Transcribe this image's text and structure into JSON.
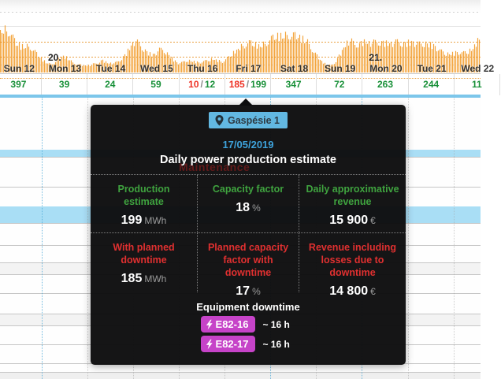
{
  "chart": {
    "separator": "/",
    "days": [
      {
        "label": "Sun 12",
        "total": "397"
      },
      {
        "label": "Mon 13",
        "total": "39",
        "week": "20."
      },
      {
        "label": "Tue 14",
        "total": "24"
      },
      {
        "label": "Wed 15",
        "total": "59"
      },
      {
        "label": "Thu 16",
        "downtime_total": "10",
        "total": "12"
      },
      {
        "label": "Fri 17",
        "downtime_total": "185",
        "total": "199"
      },
      {
        "label": "Sat 18",
        "total": "347"
      },
      {
        "label": "Sun 19",
        "total": "72"
      },
      {
        "label": "Mon 20",
        "total": "263",
        "week": "21."
      },
      {
        "label": "Tue 21",
        "total": "244"
      },
      {
        "label": "Wed 22",
        "total": "11"
      }
    ],
    "colors": {
      "bar": "#f3a53e",
      "gridline_orange": "#e8962c",
      "total_green": "#189038",
      "total_red": "#ee3124"
    },
    "bar_envelope": [
      [
        0,
        56
      ],
      [
        6,
        60
      ],
      [
        12,
        58
      ],
      [
        16,
        50
      ],
      [
        20,
        42
      ],
      [
        26,
        37
      ],
      [
        32,
        36
      ],
      [
        38,
        37
      ],
      [
        44,
        30
      ],
      [
        50,
        22
      ],
      [
        56,
        16
      ],
      [
        62,
        12
      ],
      [
        68,
        13
      ],
      [
        74,
        19
      ],
      [
        80,
        23
      ],
      [
        86,
        20
      ],
      [
        92,
        14
      ],
      [
        98,
        12
      ],
      [
        106,
        10
      ],
      [
        114,
        10
      ],
      [
        122,
        13
      ],
      [
        130,
        17
      ],
      [
        138,
        13
      ],
      [
        146,
        13
      ],
      [
        154,
        19
      ],
      [
        160,
        26
      ],
      [
        166,
        37
      ],
      [
        172,
        45
      ],
      [
        178,
        38
      ],
      [
        184,
        31
      ],
      [
        190,
        26
      ],
      [
        196,
        25
      ],
      [
        202,
        32
      ],
      [
        208,
        31
      ],
      [
        214,
        25
      ],
      [
        220,
        18
      ],
      [
        226,
        13
      ],
      [
        232,
        14
      ],
      [
        238,
        17
      ],
      [
        244,
        16
      ],
      [
        252,
        14
      ],
      [
        258,
        15
      ],
      [
        264,
        17
      ],
      [
        270,
        19
      ],
      [
        276,
        17
      ],
      [
        282,
        15
      ],
      [
        288,
        19
      ],
      [
        294,
        25
      ],
      [
        300,
        31
      ],
      [
        306,
        36
      ],
      [
        312,
        40
      ],
      [
        318,
        42
      ],
      [
        324,
        39
      ],
      [
        330,
        37
      ],
      [
        336,
        40
      ],
      [
        342,
        46
      ],
      [
        348,
        50
      ],
      [
        354,
        51
      ],
      [
        360,
        51
      ],
      [
        366,
        53
      ],
      [
        372,
        53
      ],
      [
        378,
        51
      ],
      [
        384,
        47
      ],
      [
        390,
        43
      ],
      [
        396,
        34
      ],
      [
        402,
        24
      ],
      [
        408,
        16
      ],
      [
        414,
        11
      ],
      [
        420,
        10
      ],
      [
        426,
        15
      ],
      [
        432,
        26
      ],
      [
        438,
        38
      ],
      [
        444,
        45
      ],
      [
        450,
        41
      ],
      [
        456,
        39
      ],
      [
        462,
        44
      ],
      [
        468,
        41
      ],
      [
        474,
        42
      ],
      [
        480,
        43
      ],
      [
        486,
        42
      ],
      [
        492,
        41
      ],
      [
        498,
        41
      ],
      [
        504,
        43
      ],
      [
        510,
        41
      ],
      [
        516,
        41
      ],
      [
        522,
        43
      ],
      [
        528,
        41
      ],
      [
        534,
        39
      ],
      [
        540,
        41
      ],
      [
        546,
        39
      ],
      [
        552,
        37
      ],
      [
        558,
        31
      ],
      [
        564,
        27
      ],
      [
        570,
        26
      ],
      [
        576,
        27
      ],
      [
        582,
        29
      ],
      [
        588,
        27
      ],
      [
        594,
        29
      ],
      [
        600,
        33
      ],
      [
        606,
        44
      ],
      [
        610,
        47
      ]
    ]
  },
  "background": {
    "maintenance_label": "Maintenance"
  },
  "tooltip": {
    "location": "Gaspésie 1",
    "date": "17/05/2019",
    "title": "Daily power production estimate",
    "metrics": [
      {
        "label": "Production estimate",
        "value": "199",
        "unit": "MWh",
        "sentiment": "positive"
      },
      {
        "label": "Capacity factor",
        "value": "18",
        "unit": "%",
        "sentiment": "positive"
      },
      {
        "label": "Daily approximative revenue",
        "value": "15 900",
        "unit": "€",
        "sentiment": "positive"
      },
      {
        "label": "With planned downtime",
        "value": "185",
        "unit": "MWh",
        "sentiment": "negative"
      },
      {
        "label": "Planned capacity factor with downtime",
        "value": "17",
        "unit": "%",
        "sentiment": "negative"
      },
      {
        "label": "Revenue including losses due to downtime",
        "value": "14 800",
        "unit": "€",
        "sentiment": "negative"
      }
    ],
    "equipment": {
      "title": "Equipment downtime",
      "items": [
        {
          "name": "E82-16",
          "duration": "~ 16 h"
        },
        {
          "name": "E82-17",
          "duration": "~ 16 h"
        }
      ]
    },
    "colors": {
      "positive": "#3fa33f",
      "negative": "#e03030",
      "date": "#3ea3dc",
      "location_badge_bg": "#62b8e2",
      "equipment_badge_bg": "#c643c8"
    }
  }
}
